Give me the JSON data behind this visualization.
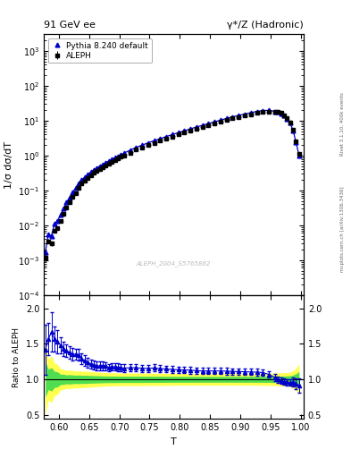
{
  "title_left": "91 GeV ee",
  "title_right": "γ*/Z (Hadronic)",
  "ylabel_main": "1/σ dσ/dT",
  "ylabel_ratio": "Ratio to ALEPH",
  "xlabel": "T",
  "right_label_top": "Rivet 3.1.10, 400k events",
  "right_label_bottom": "mcplots.cern.ch [arXiv:1306.3436]",
  "watermark": "ALEPH_2004_S5765862",
  "legend_entries": [
    "ALEPH",
    "Pythia 8.240 default"
  ],
  "aleph_T": [
    0.5774,
    0.5825,
    0.5875,
    0.5925,
    0.5975,
    0.6025,
    0.6075,
    0.6125,
    0.6175,
    0.6225,
    0.6275,
    0.6325,
    0.6375,
    0.6425,
    0.6475,
    0.6525,
    0.6575,
    0.6625,
    0.6675,
    0.6725,
    0.6775,
    0.6825,
    0.6875,
    0.6925,
    0.6975,
    0.7025,
    0.7075,
    0.7175,
    0.7275,
    0.7375,
    0.7475,
    0.7575,
    0.7675,
    0.7775,
    0.7875,
    0.7975,
    0.8075,
    0.8175,
    0.8275,
    0.8375,
    0.8475,
    0.8575,
    0.8675,
    0.8775,
    0.8875,
    0.8975,
    0.9075,
    0.9175,
    0.9275,
    0.9375,
    0.9475,
    0.9575,
    0.9625,
    0.9675,
    0.9725,
    0.9775,
    0.9825,
    0.9875,
    0.9925,
    0.9975
  ],
  "aleph_y": [
    0.0012,
    0.0035,
    0.003,
    0.007,
    0.0085,
    0.0135,
    0.021,
    0.032,
    0.045,
    0.065,
    0.085,
    0.115,
    0.155,
    0.19,
    0.23,
    0.275,
    0.32,
    0.37,
    0.42,
    0.47,
    0.53,
    0.6,
    0.67,
    0.74,
    0.82,
    0.91,
    1.01,
    1.22,
    1.46,
    1.72,
    2.0,
    2.3,
    2.65,
    3.05,
    3.5,
    4.0,
    4.55,
    5.15,
    5.85,
    6.6,
    7.4,
    8.3,
    9.3,
    10.4,
    11.6,
    12.8,
    14.0,
    15.4,
    16.7,
    17.8,
    18.5,
    18.0,
    17.5,
    16.5,
    14.5,
    12.0,
    9.0,
    5.5,
    2.5,
    1.1
  ],
  "aleph_yerr": [
    0.0003,
    0.0005,
    0.0005,
    0.0008,
    0.0009,
    0.001,
    0.0015,
    0.002,
    0.003,
    0.004,
    0.005,
    0.007,
    0.009,
    0.011,
    0.013,
    0.015,
    0.017,
    0.019,
    0.021,
    0.023,
    0.025,
    0.028,
    0.031,
    0.034,
    0.037,
    0.041,
    0.045,
    0.054,
    0.065,
    0.076,
    0.088,
    0.1,
    0.115,
    0.13,
    0.148,
    0.168,
    0.19,
    0.215,
    0.242,
    0.272,
    0.305,
    0.342,
    0.383,
    0.428,
    0.478,
    0.53,
    0.58,
    0.64,
    0.7,
    0.75,
    0.8,
    0.8,
    0.78,
    0.75,
    0.68,
    0.58,
    0.46,
    0.33,
    0.2,
    0.12
  ],
  "pythia_y": [
    0.0017,
    0.0055,
    0.005,
    0.011,
    0.013,
    0.02,
    0.03,
    0.045,
    0.062,
    0.088,
    0.115,
    0.155,
    0.2,
    0.24,
    0.285,
    0.335,
    0.385,
    0.44,
    0.5,
    0.56,
    0.63,
    0.7,
    0.79,
    0.87,
    0.96,
    1.06,
    1.17,
    1.42,
    1.7,
    1.99,
    2.31,
    2.67,
    3.05,
    3.5,
    3.99,
    4.54,
    5.15,
    5.82,
    6.57,
    7.38,
    8.28,
    9.28,
    10.4,
    11.6,
    12.9,
    14.2,
    15.5,
    17.0,
    18.4,
    19.5,
    19.8,
    18.5,
    17.5,
    16.2,
    14.0,
    11.5,
    8.6,
    5.3,
    2.35,
    1.0
  ],
  "color_aleph": "#000000",
  "color_pythia": "#0000cc",
  "color_yellow": "#ffff50",
  "color_green": "#50dd50",
  "xlim": [
    0.575,
    1.005
  ],
  "ylim_main": [
    0.0001,
    3000.0
  ],
  "ylim_ratio": [
    0.44,
    2.19
  ],
  "ratio_yticks": [
    0.5,
    1.0,
    1.5,
    2.0
  ],
  "bg_color": "#ffffff"
}
